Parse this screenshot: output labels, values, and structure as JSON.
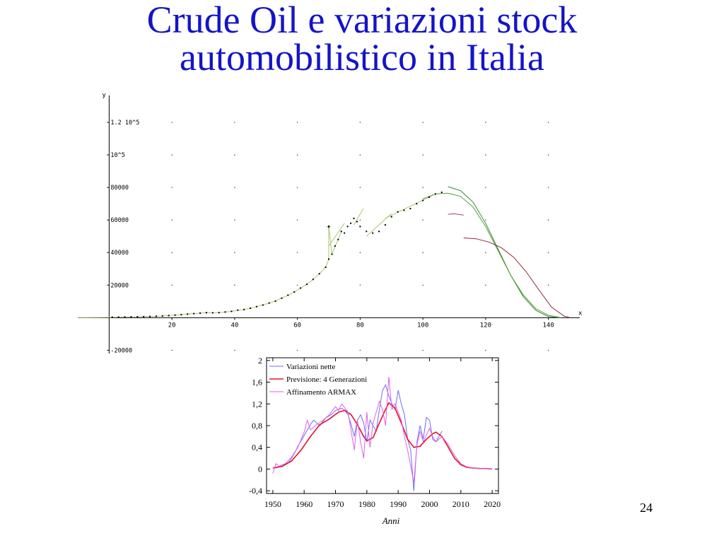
{
  "slide": {
    "title_line1": "Crude Oil e variazioni stock",
    "title_line2": "automobilistico in Italia",
    "page_number": "24"
  },
  "chart_data": [
    {
      "type": "scatter",
      "xlabel": "x",
      "ylabel": "y",
      "xlim": [
        -10,
        150
      ],
      "ylim": [
        -22000,
        130000
      ],
      "x_ticks": [
        20,
        40,
        60,
        80,
        100,
        120,
        140
      ],
      "y_ticks": [
        -20000,
        20000,
        40000,
        60000,
        80000,
        100000,
        120000
      ],
      "y_tick_labels": [
        "-20000",
        "20000",
        "40000",
        "60000",
        "80000",
        "10^5",
        "1.2 10^5"
      ],
      "grid": "dotted",
      "colors": {
        "points": "#000000",
        "fit_a": "#2e8b2e",
        "fit_b": "#5a9a3a",
        "fit_c": "#8b2a3a",
        "fit_d": "#a0407a",
        "guides": "#a8c870"
      },
      "points": [
        [
          1,
          300
        ],
        [
          3,
          350
        ],
        [
          5,
          400
        ],
        [
          7,
          500
        ],
        [
          9,
          550
        ],
        [
          11,
          650
        ],
        [
          13,
          750
        ],
        [
          15,
          900
        ],
        [
          17,
          1050
        ],
        [
          19,
          1300
        ],
        [
          21,
          1600
        ],
        [
          23,
          1900
        ],
        [
          25,
          2200
        ],
        [
          27,
          2500
        ],
        [
          29,
          2800
        ],
        [
          31,
          3100
        ],
        [
          33,
          3000
        ],
        [
          35,
          3100
        ],
        [
          37,
          3500
        ],
        [
          39,
          3900
        ],
        [
          41,
          4600
        ],
        [
          43,
          5000
        ],
        [
          45,
          5800
        ],
        [
          47,
          6800
        ],
        [
          49,
          7800
        ],
        [
          51,
          9000
        ],
        [
          53,
          10200
        ],
        [
          55,
          12000
        ],
        [
          57,
          13800
        ],
        [
          59,
          15800
        ],
        [
          61,
          18200
        ],
        [
          63,
          20500
        ],
        [
          65,
          23500
        ],
        [
          67,
          27000
        ],
        [
          69,
          31000
        ],
        [
          70,
          36000
        ],
        [
          71,
          39000
        ],
        [
          72,
          44000
        ],
        [
          73,
          48000
        ],
        [
          74,
          53000
        ],
        [
          75,
          52000
        ],
        [
          76,
          56000
        ],
        [
          77,
          58000
        ],
        [
          78,
          61000
        ],
        [
          79,
          59000
        ],
        [
          80,
          56000
        ],
        [
          82,
          53000
        ],
        [
          84,
          52000
        ],
        [
          86,
          53000
        ],
        [
          88,
          57000
        ],
        [
          90,
          62000
        ],
        [
          92,
          65000
        ],
        [
          94,
          66000
        ],
        [
          96,
          67000
        ],
        [
          98,
          70000
        ],
        [
          100,
          72000
        ],
        [
          102,
          74000
        ],
        [
          104,
          76000
        ],
        [
          106,
          77000
        ],
        [
          70,
          56000
        ]
      ],
      "fit_a": [
        [
          108,
          80500
        ],
        [
          112,
          78000
        ],
        [
          116,
          71000
        ],
        [
          120,
          58000
        ],
        [
          124,
          42000
        ],
        [
          128,
          26000
        ],
        [
          132,
          13000
        ],
        [
          136,
          4500
        ],
        [
          140,
          700
        ],
        [
          144,
          0
        ]
      ],
      "fit_b": [
        [
          100,
          73000
        ],
        [
          104,
          76000
        ],
        [
          108,
          76500
        ],
        [
          112,
          74500
        ],
        [
          116,
          68000
        ],
        [
          120,
          56000
        ],
        [
          124,
          41000
        ],
        [
          128,
          26000
        ],
        [
          132,
          14000
        ],
        [
          136,
          5500
        ],
        [
          140,
          1500
        ],
        [
          144,
          0
        ]
      ],
      "fit_c": [
        [
          113,
          49000
        ],
        [
          117,
          48500
        ],
        [
          121,
          46500
        ],
        [
          125,
          43000
        ],
        [
          129,
          37000
        ],
        [
          133,
          28000
        ],
        [
          137,
          17000
        ],
        [
          141,
          6500
        ],
        [
          145,
          1000
        ],
        [
          147,
          0
        ]
      ],
      "fit_d": [
        [
          108,
          63500
        ],
        [
          110,
          63800
        ],
        [
          113,
          63000
        ]
      ],
      "guide_segments": [
        [
          [
            70,
            44000
          ],
          [
            75,
            58000
          ]
        ],
        [
          [
            78,
            57000
          ],
          [
            81,
            67000
          ]
        ],
        [
          [
            82,
            50000
          ],
          [
            90,
            64000
          ]
        ],
        [
          [
            88,
            61000
          ],
          [
            104,
            76000
          ]
        ]
      ],
      "marker_plus": [
        70,
        56000
      ]
    },
    {
      "type": "line",
      "xlabel": "Anni",
      "ylabel": "",
      "xlim": [
        1948,
        2022
      ],
      "ylim": [
        -0.45,
        2.05
      ],
      "x_ticks": [
        1950,
        1960,
        1970,
        1980,
        1990,
        2000,
        2010,
        2020
      ],
      "y_ticks": [
        -0.4,
        0,
        0.4,
        0.8,
        1.2,
        1.6,
        2
      ],
      "y_tick_labels": [
        "-0,4",
        "0",
        "0,4",
        "0,8",
        "1,2",
        "1,6",
        "2"
      ],
      "legend": "top-left",
      "series": [
        {
          "name": "Variazioni nette",
          "color": "#6b6bff",
          "x": [
            1951,
            1952,
            1953,
            1954,
            1955,
            1956,
            1957,
            1958,
            1959,
            1960,
            1961,
            1962,
            1963,
            1964,
            1965,
            1966,
            1967,
            1968,
            1969,
            1970,
            1971,
            1972,
            1973,
            1974,
            1975,
            1976,
            1977,
            1978,
            1979,
            1980,
            1981,
            1982,
            1983,
            1984,
            1985,
            1986,
            1987,
            1988,
            1989,
            1990,
            1991,
            1992,
            1993,
            1994,
            1995,
            1996,
            1997,
            1998,
            1999,
            2000,
            2001,
            2002,
            2003,
            2004
          ],
          "values": [
            0.02,
            0.05,
            0.08,
            0.1,
            0.12,
            0.2,
            0.3,
            0.42,
            0.52,
            0.62,
            0.72,
            0.82,
            0.9,
            0.85,
            0.8,
            0.88,
            0.95,
            0.98,
            1.02,
            1.08,
            1.1,
            1.12,
            1.08,
            1.0,
            0.82,
            0.6,
            0.9,
            1.0,
            0.85,
            0.5,
            0.9,
            0.8,
            0.7,
            1.1,
            1.45,
            1.55,
            1.35,
            1.2,
            1.1,
            1.45,
            1.2,
            1.0,
            0.55,
            0.35,
            -0.4,
            0.5,
            0.8,
            0.55,
            0.95,
            0.9,
            0.55,
            0.5,
            0.6,
            0.7
          ]
        },
        {
          "name": "Previsione:  4 Generazioni",
          "color": "#e8102a",
          "x": [
            1950,
            1953,
            1956,
            1959,
            1962,
            1965,
            1968,
            1971,
            1973,
            1975,
            1977,
            1979,
            1980,
            1982,
            1984,
            1986,
            1987,
            1989,
            1991,
            1993,
            1995,
            1997,
            1999,
            2001,
            2002,
            2004,
            2006,
            2008,
            2010,
            2012,
            2014,
            2016,
            2018,
            2020
          ],
          "values": [
            0.02,
            0.05,
            0.15,
            0.35,
            0.6,
            0.82,
            0.92,
            1.05,
            1.08,
            1.0,
            0.82,
            0.6,
            0.52,
            0.58,
            0.85,
            1.1,
            1.22,
            1.12,
            0.85,
            0.55,
            0.4,
            0.42,
            0.55,
            0.65,
            0.68,
            0.6,
            0.4,
            0.2,
            0.08,
            0.03,
            0.02,
            0.01,
            0.01,
            0.0
          ]
        },
        {
          "name": "Affinamento ARMAX",
          "color": "#e060e8",
          "x": [
            1950,
            1951,
            1952,
            1954,
            1956,
            1958,
            1960,
            1961,
            1962,
            1964,
            1966,
            1968,
            1970,
            1971,
            1972,
            1974,
            1975,
            1976,
            1977,
            1978,
            1979,
            1980,
            1981,
            1982,
            1984,
            1985,
            1986,
            1987,
            1988,
            1989,
            1990,
            1991,
            1992,
            1993,
            1994,
            1995,
            1996,
            1997,
            1998,
            2000,
            2001,
            2002,
            2004,
            2006,
            2008,
            2010,
            2012,
            2014,
            2016,
            2018,
            2020
          ],
          "values": [
            -0.08,
            0.1,
            0.05,
            0.1,
            0.22,
            0.4,
            0.68,
            0.9,
            0.72,
            0.82,
            0.9,
            1.0,
            1.15,
            1.08,
            1.2,
            1.05,
            0.7,
            0.35,
            0.9,
            0.5,
            0.2,
            1.05,
            0.4,
            0.85,
            1.25,
            1.1,
            0.8,
            1.7,
            1.1,
            1.2,
            1.05,
            0.9,
            0.6,
            0.35,
            0.05,
            -0.25,
            0.45,
            0.7,
            0.5,
            0.75,
            0.6,
            0.5,
            0.6,
            0.45,
            0.25,
            0.1,
            0.04,
            0.02,
            0.01,
            0.01,
            0.0
          ]
        }
      ]
    }
  ]
}
